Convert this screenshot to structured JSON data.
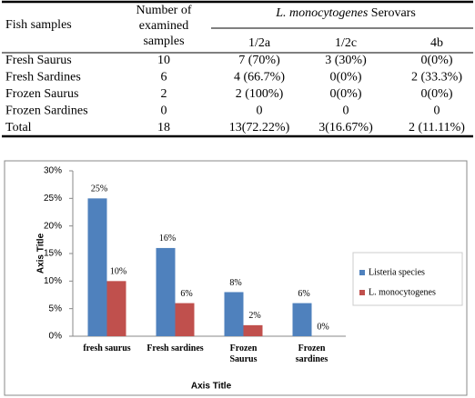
{
  "table": {
    "header": {
      "fish": "Fish samples",
      "number": "Number of examined samples",
      "serovars_italic": "L. monocytogenes",
      "serovars": "Serovars",
      "sub": [
        "1/2a",
        "1/2c",
        "4b"
      ]
    },
    "rows": [
      [
        "Fresh Saurus",
        "10",
        "7 (70%)",
        "3 (30%)",
        "0(0%)"
      ],
      [
        "Fresh Sardines",
        "6",
        "4 (66.7%)",
        "0(0%)",
        "2 (33.3%)"
      ],
      [
        "Frozen Saurus",
        "2",
        "2 (100%)",
        "0(0%)",
        "0(0%)"
      ],
      [
        "Frozen Sardines",
        "0",
        "0",
        "0",
        "0"
      ],
      [
        "Total",
        "18",
        "13(72.22%)",
        "3(16.67%)",
        "2 (11.11%)"
      ]
    ]
  },
  "chart_data": {
    "type": "bar",
    "x_label": "Axis Title",
    "y_label": "Axis Title",
    "categories": [
      "fresh saurus",
      "Fresh sardines",
      "Frozen Saurus",
      "Frozen sardines"
    ],
    "series": [
      {
        "name": "Listeria species",
        "color": "#4f81bd",
        "values": [
          25,
          16,
          8,
          6
        ],
        "value_labels": [
          "25%",
          "16%",
          "8%",
          "6%"
        ]
      },
      {
        "name": "L. monocytogenes",
        "color": "#c0504d",
        "values": [
          10,
          6,
          2,
          0
        ],
        "value_labels": [
          "10%",
          "6%",
          "2%",
          "0%"
        ]
      }
    ],
    "ylim": [
      0,
      30
    ],
    "yticks": [
      {
        "value": 0,
        "label": "0%"
      },
      {
        "value": 5,
        "label": "5%"
      },
      {
        "value": 10,
        "label": "10%"
      },
      {
        "value": 15,
        "label": "15%"
      },
      {
        "value": 20,
        "label": "20%"
      },
      {
        "value": 25,
        "label": "25%"
      },
      {
        "value": 30,
        "label": "30%"
      }
    ],
    "legend": "right"
  }
}
